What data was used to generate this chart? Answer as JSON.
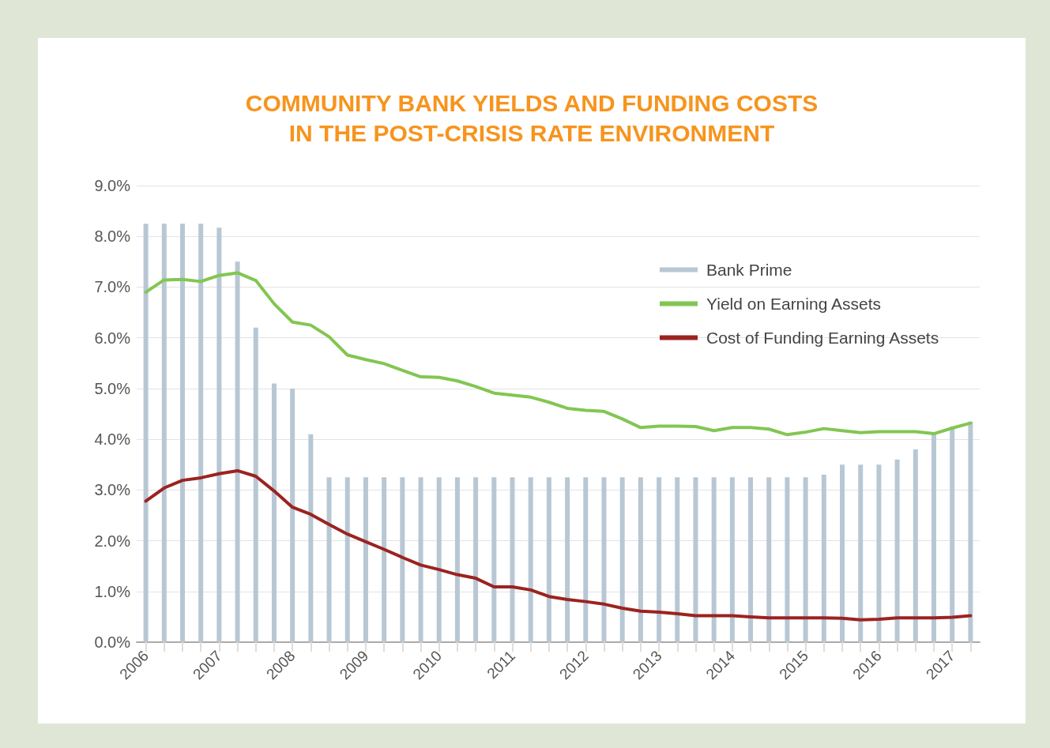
{
  "chart_data": {
    "type": "bar",
    "title": "COMMUNITY BANK YIELDS AND FUNDING COSTS\nIN THE POST-CRISIS RATE ENVIRONMENT",
    "categories": [
      "2006",
      null,
      null,
      null,
      "2007",
      null,
      null,
      null,
      "2008",
      null,
      null,
      null,
      "2009",
      null,
      null,
      null,
      "2010",
      null,
      null,
      null,
      "2011",
      null,
      null,
      null,
      "2012",
      null,
      null,
      null,
      "2013",
      null,
      null,
      null,
      "2014",
      null,
      null,
      null,
      "2015",
      null,
      null,
      null,
      "2016",
      null,
      null,
      null,
      "2017",
      null
    ],
    "series": [
      {
        "name": "Bank Prime",
        "color": "#b8c7d4",
        "values": [
          8.25,
          8.25,
          8.25,
          8.25,
          8.17,
          7.5,
          6.2,
          5.1,
          5.0,
          4.1,
          3.25,
          3.25,
          3.25,
          3.25,
          3.25,
          3.25,
          3.25,
          3.25,
          3.25,
          3.25,
          3.25,
          3.25,
          3.25,
          3.25,
          3.25,
          3.25,
          3.25,
          3.25,
          3.25,
          3.25,
          3.25,
          3.25,
          3.25,
          3.25,
          3.25,
          3.25,
          3.25,
          3.3,
          3.5,
          3.5,
          3.5,
          3.6,
          3.8,
          4.1,
          4.25,
          4.35
        ]
      },
      {
        "name": "Yield on Earning Assets",
        "type": "line",
        "color": "#82c652",
        "values": [
          6.9,
          7.14,
          7.15,
          7.11,
          7.23,
          7.28,
          7.13,
          6.67,
          6.31,
          6.25,
          6.02,
          5.66,
          5.57,
          5.49,
          5.36,
          5.23,
          5.22,
          5.15,
          5.04,
          4.91,
          4.87,
          4.83,
          4.73,
          4.61,
          4.57,
          4.55,
          4.4,
          4.23,
          4.26,
          4.26,
          4.25,
          4.17,
          4.23,
          4.23,
          4.2,
          4.09,
          4.14,
          4.21,
          4.17,
          4.13,
          4.15,
          4.15,
          4.15,
          4.11,
          4.22,
          4.32
        ]
      },
      {
        "name": "Cost of Funding Earning Assets",
        "type": "line",
        "color": "#9b2320",
        "values": [
          2.78,
          3.04,
          3.19,
          3.24,
          3.32,
          3.38,
          3.27,
          2.98,
          2.66,
          2.52,
          2.32,
          2.13,
          1.98,
          1.83,
          1.67,
          1.52,
          1.43,
          1.33,
          1.26,
          1.09,
          1.09,
          1.03,
          0.9,
          0.84,
          0.8,
          0.75,
          0.67,
          0.61,
          0.59,
          0.56,
          0.52,
          0.52,
          0.52,
          0.5,
          0.48,
          0.48,
          0.48,
          0.48,
          0.47,
          0.44,
          0.45,
          0.48,
          0.48,
          0.48,
          0.49,
          0.52
        ]
      }
    ],
    "ylim": [
      0,
      9
    ],
    "yticks": [
      {
        "value": 0,
        "label": "0.0%"
      },
      {
        "value": 1,
        "label": "1.0%"
      },
      {
        "value": 2,
        "label": "2.0%"
      },
      {
        "value": 3,
        "label": "3.0%"
      },
      {
        "value": 4,
        "label": "4.0%"
      },
      {
        "value": 5,
        "label": "5.0%"
      },
      {
        "value": 6,
        "label": "6.0%"
      },
      {
        "value": 7,
        "label": "7.0%"
      },
      {
        "value": 8,
        "label": "8.0%"
      },
      {
        "value": 9,
        "label": "9.0%"
      }
    ],
    "grid": "y",
    "legend": "top right",
    "marker": "none",
    "line_style": "solid"
  }
}
